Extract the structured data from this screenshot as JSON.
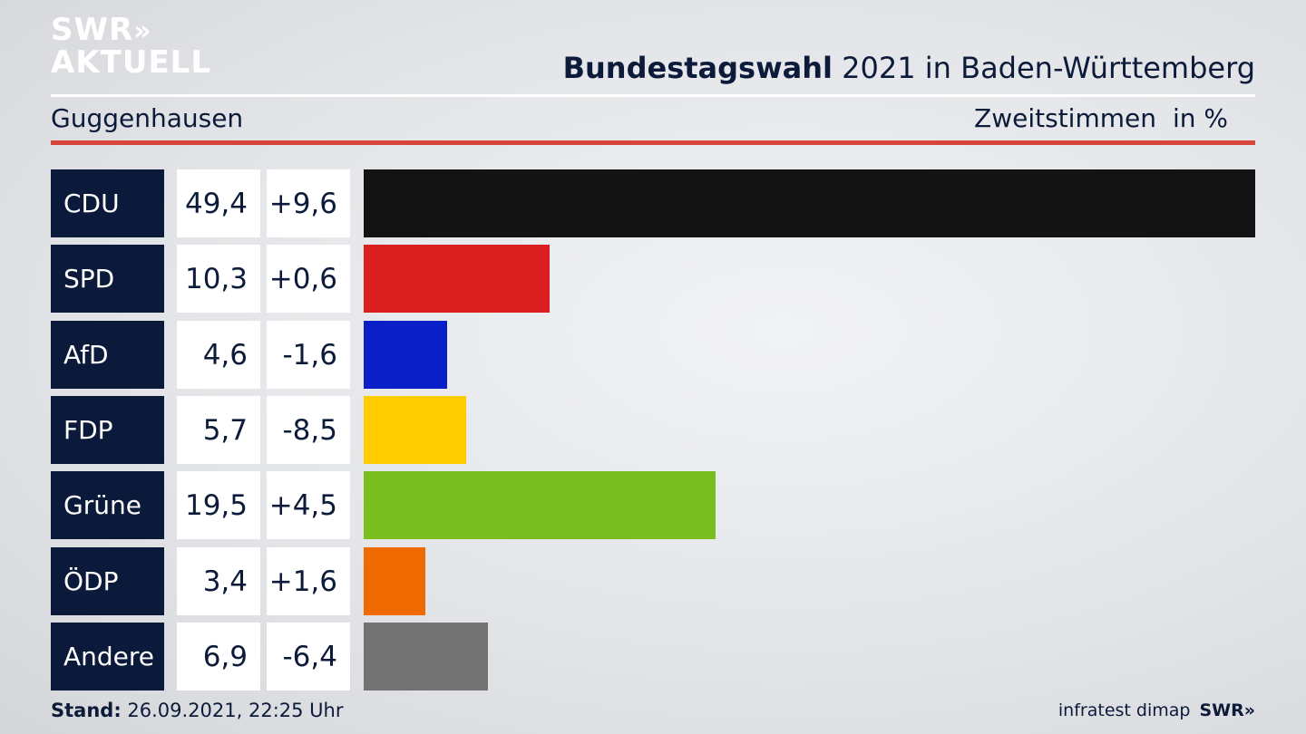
{
  "logo": {
    "line1": "SWR",
    "arrows": "»",
    "line2": "AKTUELL"
  },
  "header": {
    "title_bold": "Bundestagswahl",
    "title_rest": " 2021 in Baden-Württemberg",
    "region": "Guggenhausen",
    "metric": "Zweitstimmen",
    "unit": "in %"
  },
  "footer": {
    "stand_label": "Stand:",
    "stand_value": " 26.09.2021, 22:25 Uhr",
    "source": "infratest dimap",
    "brand": "SWR»"
  },
  "colors": {
    "accent_red": "#d9443a",
    "party_box": "#0b1a3a"
  },
  "chart_data": {
    "type": "bar",
    "orientation": "horizontal",
    "title": "Bundestagswahl 2021 in Baden-Württemberg",
    "xlim": [
      0,
      49.4
    ],
    "rows": [
      {
        "party": "CDU",
        "value": 49.4,
        "value_label": "49,4",
        "diff_label": "+9,6",
        "color": "#131313"
      },
      {
        "party": "SPD",
        "value": 10.3,
        "value_label": "10,3",
        "diff_label": "+0,6",
        "color": "#d91f1f"
      },
      {
        "party": "AfD",
        "value": 4.6,
        "value_label": "4,6",
        "diff_label": "-1,6",
        "color": "#0a1fc8"
      },
      {
        "party": "FDP",
        "value": 5.7,
        "value_label": "5,7",
        "diff_label": "-8,5",
        "color": "#ffcc00"
      },
      {
        "party": "Grüne",
        "value": 19.5,
        "value_label": "19,5",
        "diff_label": "+4,5",
        "color": "#78be1e"
      },
      {
        "party": "ÖDP",
        "value": 3.4,
        "value_label": "3,4",
        "diff_label": "+1,6",
        "color": "#ef6a00"
      },
      {
        "party": "Andere",
        "value": 6.9,
        "value_label": "6,9",
        "diff_label": "-6,4",
        "color": "#737373"
      }
    ]
  }
}
